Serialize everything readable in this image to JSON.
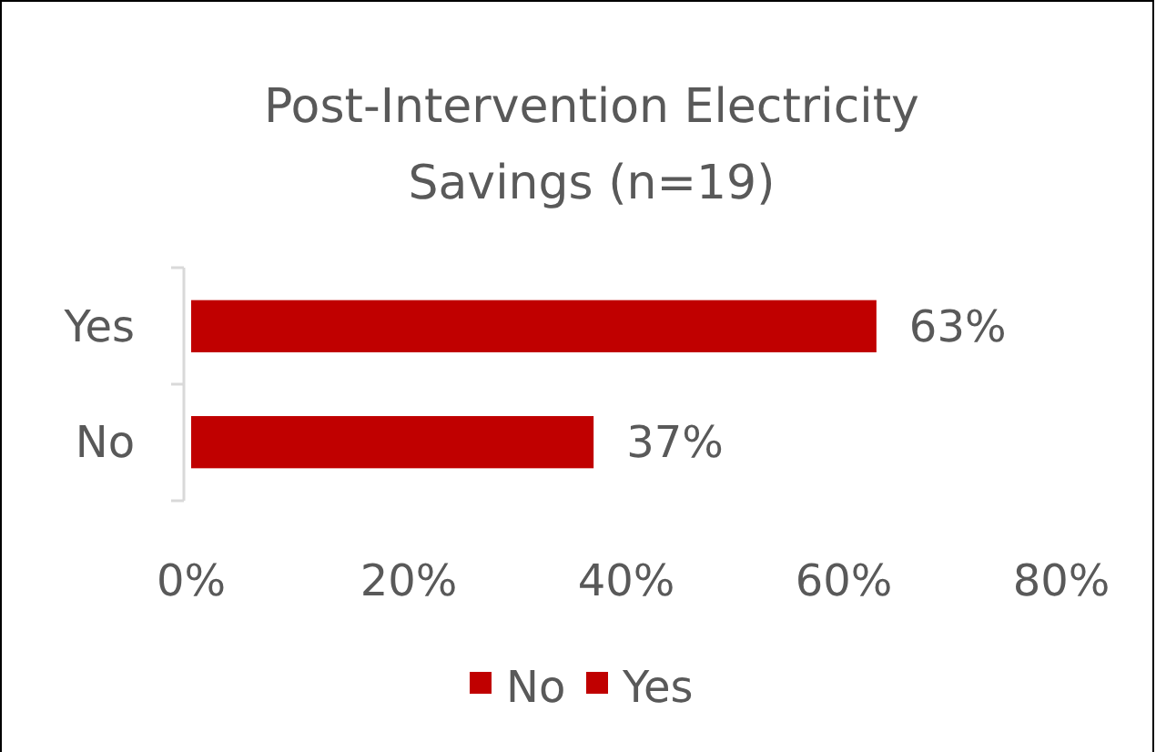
{
  "chart_data": {
    "type": "bar",
    "orientation": "horizontal",
    "title": "Post-Intervention Electricity Savings (n=19)",
    "categories": [
      "Yes",
      "No"
    ],
    "series": [
      {
        "name": "No",
        "color": "#c00000",
        "values": [
          null,
          37
        ],
        "value_labels": [
          null,
          "37%"
        ]
      },
      {
        "name": "Yes",
        "color": "#c00000",
        "values": [
          63,
          null
        ],
        "value_labels": [
          "63%",
          null
        ]
      }
    ],
    "xlim": [
      0,
      80
    ],
    "xticks": [
      {
        "value": 0,
        "label": "0%"
      },
      {
        "value": 20,
        "label": "20%"
      },
      {
        "value": 40,
        "label": "40%"
      },
      {
        "value": 60,
        "label": "60%"
      },
      {
        "value": 80,
        "label": "80%"
      }
    ],
    "grid": false,
    "legend": "bottom"
  }
}
